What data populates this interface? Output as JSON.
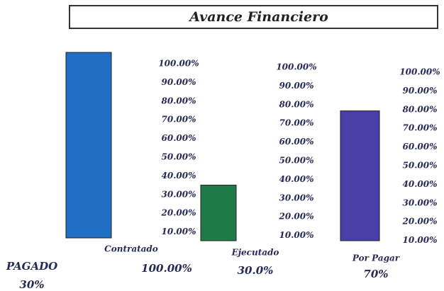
{
  "chart_data": {
    "type": "bar",
    "title": "Avance Financiero",
    "categories": [
      "Contratado",
      "Ejecutado",
      "Por Pagar"
    ],
    "values": [
      100,
      30,
      70
    ],
    "value_labels": [
      "100.00%",
      "30.0%",
      "70%"
    ],
    "colors": [
      "#1f6fc4",
      "#1f7a4a",
      "#4a3fa8"
    ],
    "ylim": [
      0,
      100
    ],
    "yticks": [
      {
        "value": 100,
        "label": "100.00%"
      },
      {
        "value": 90,
        "label": "90.00%"
      },
      {
        "value": 80,
        "label": "80.00%"
      },
      {
        "value": 70,
        "label": "70.00%"
      },
      {
        "value": 60,
        "label": "60.00%"
      },
      {
        "value": 50,
        "label": "50.00%"
      },
      {
        "value": 40,
        "label": "40.00%"
      },
      {
        "value": 30,
        "label": "30.00%"
      },
      {
        "value": 20,
        "label": "20.00%"
      },
      {
        "value": 10,
        "label": "10.00%"
      }
    ],
    "annotations": [
      "PAGADO",
      "30%"
    ]
  }
}
